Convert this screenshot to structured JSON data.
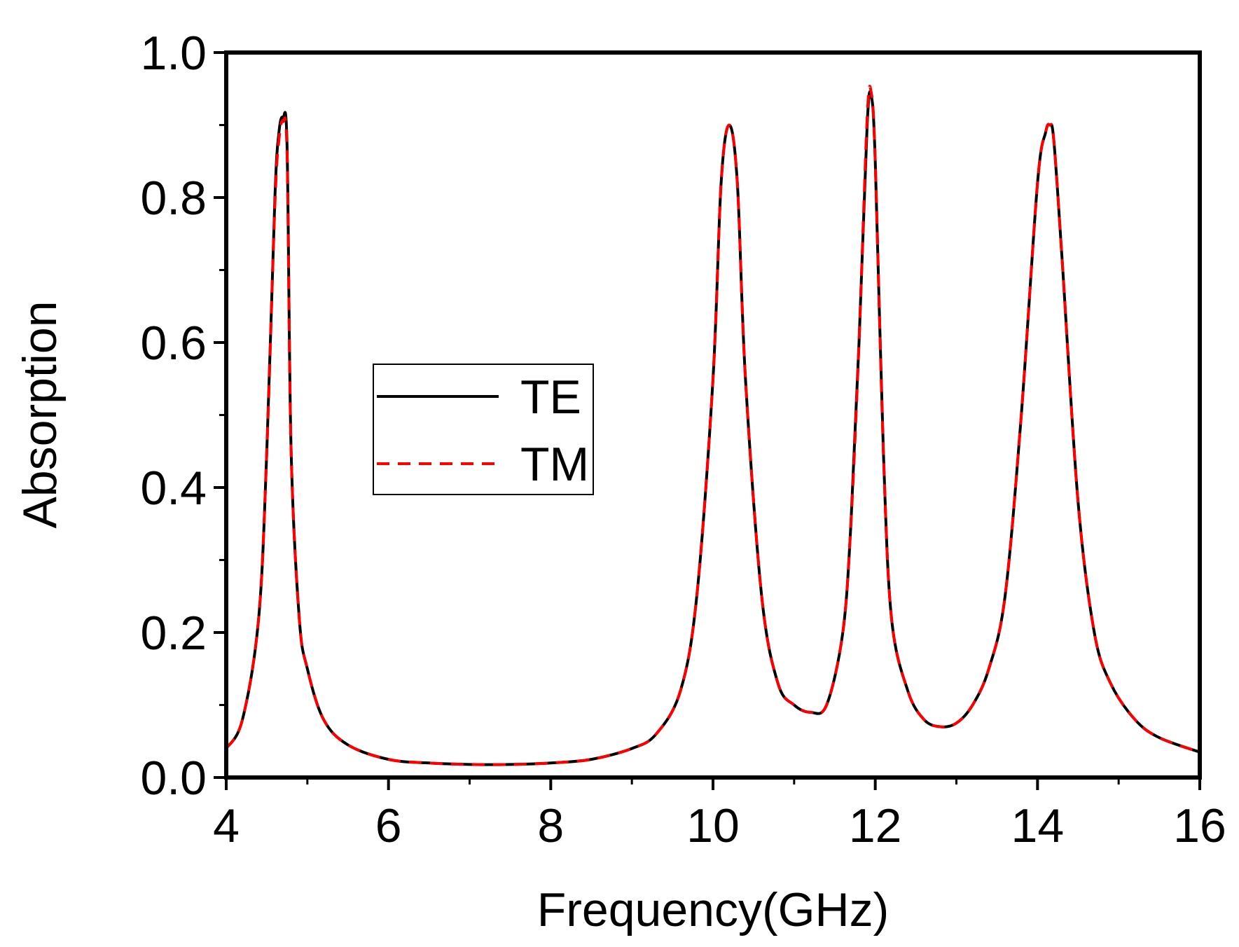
{
  "chart_data": {
    "type": "line",
    "xlabel": "Frequency(GHz)",
    "ylabel": "Absorption",
    "xlim": [
      4,
      16
    ],
    "ylim": [
      0.0,
      1.0
    ],
    "x_ticks": [
      "4",
      "6",
      "8",
      "10",
      "12",
      "14",
      "16"
    ],
    "y_ticks": [
      "0.0",
      "0.2",
      "0.4",
      "0.6",
      "0.8",
      "1.0"
    ],
    "grid": false,
    "legend_position": "center-left",
    "series": [
      {
        "name": "TE",
        "color": "#000000",
        "style": "solid",
        "x": [
          4.0,
          4.2,
          4.4,
          4.5,
          4.6,
          4.65,
          4.7,
          4.75,
          4.8,
          4.9,
          5.0,
          5.2,
          5.5,
          6.0,
          6.5,
          7.0,
          7.5,
          8.0,
          8.5,
          9.0,
          9.3,
          9.6,
          9.8,
          10.0,
          10.1,
          10.2,
          10.3,
          10.4,
          10.6,
          10.8,
          11.0,
          11.2,
          11.4,
          11.6,
          11.7,
          11.8,
          11.9,
          11.95,
          12.0,
          12.1,
          12.2,
          12.4,
          12.6,
          12.8,
          13.0,
          13.2,
          13.4,
          13.6,
          13.8,
          14.0,
          14.1,
          14.15,
          14.2,
          14.3,
          14.5,
          14.7,
          14.9,
          15.2,
          15.5,
          16.0
        ],
        "values": [
          0.04,
          0.08,
          0.22,
          0.45,
          0.8,
          0.89,
          0.91,
          0.87,
          0.45,
          0.22,
          0.15,
          0.08,
          0.045,
          0.025,
          0.02,
          0.018,
          0.018,
          0.02,
          0.025,
          0.04,
          0.06,
          0.12,
          0.25,
          0.55,
          0.82,
          0.9,
          0.82,
          0.55,
          0.25,
          0.13,
          0.1,
          0.09,
          0.1,
          0.2,
          0.35,
          0.6,
          0.9,
          0.94,
          0.85,
          0.45,
          0.22,
          0.12,
          0.08,
          0.07,
          0.075,
          0.1,
          0.15,
          0.25,
          0.5,
          0.82,
          0.89,
          0.9,
          0.88,
          0.72,
          0.38,
          0.2,
          0.13,
          0.08,
          0.055,
          0.035
        ]
      },
      {
        "name": "TM",
        "color": "#ff0000",
        "style": "dashed",
        "x": [
          4.0,
          4.2,
          4.4,
          4.5,
          4.6,
          4.65,
          4.7,
          4.75,
          4.8,
          4.9,
          5.0,
          5.2,
          5.5,
          6.0,
          6.5,
          7.0,
          7.5,
          8.0,
          8.5,
          9.0,
          9.3,
          9.6,
          9.8,
          10.0,
          10.1,
          10.2,
          10.3,
          10.4,
          10.6,
          10.8,
          11.0,
          11.2,
          11.4,
          11.6,
          11.7,
          11.8,
          11.9,
          11.95,
          12.0,
          12.1,
          12.2,
          12.4,
          12.6,
          12.8,
          13.0,
          13.2,
          13.4,
          13.6,
          13.8,
          14.0,
          14.1,
          14.15,
          14.2,
          14.3,
          14.5,
          14.7,
          14.9,
          15.2,
          15.5,
          16.0
        ],
        "values": [
          0.04,
          0.08,
          0.22,
          0.45,
          0.79,
          0.88,
          0.905,
          0.86,
          0.45,
          0.22,
          0.15,
          0.08,
          0.045,
          0.025,
          0.02,
          0.018,
          0.018,
          0.02,
          0.025,
          0.04,
          0.06,
          0.12,
          0.25,
          0.55,
          0.82,
          0.9,
          0.82,
          0.55,
          0.25,
          0.13,
          0.1,
          0.09,
          0.1,
          0.2,
          0.35,
          0.6,
          0.91,
          0.945,
          0.85,
          0.45,
          0.22,
          0.12,
          0.08,
          0.07,
          0.075,
          0.1,
          0.15,
          0.25,
          0.5,
          0.82,
          0.89,
          0.9,
          0.88,
          0.72,
          0.38,
          0.2,
          0.13,
          0.08,
          0.055,
          0.035
        ]
      }
    ]
  }
}
